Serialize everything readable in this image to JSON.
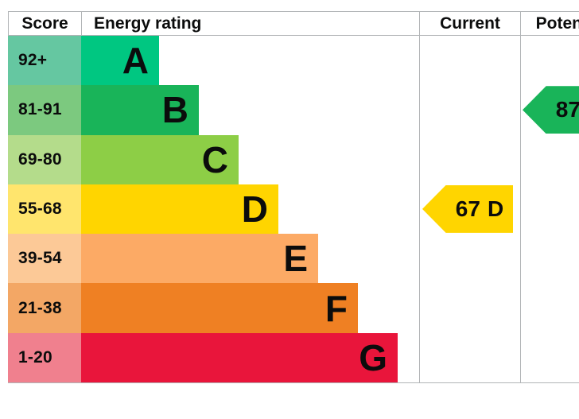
{
  "header": {
    "score": "Score",
    "rating": "Energy rating",
    "current": "Current",
    "potential": "Potential"
  },
  "bands": [
    {
      "range": "92+",
      "letter": "A",
      "bar_color": "#00c781",
      "score_color": "#65c7a1"
    },
    {
      "range": "81-91",
      "letter": "B",
      "bar_color": "#19b459",
      "score_color": "#7cc97f"
    },
    {
      "range": "69-80",
      "letter": "C",
      "bar_color": "#8dce46",
      "score_color": "#b4dc8b"
    },
    {
      "range": "55-68",
      "letter": "D",
      "bar_color": "#ffd500",
      "score_color": "#ffe56d"
    },
    {
      "range": "39-54",
      "letter": "E",
      "bar_color": "#fcaa65",
      "score_color": "#fcc997"
    },
    {
      "range": "21-38",
      "letter": "F",
      "bar_color": "#ef8023",
      "score_color": "#f3a765"
    },
    {
      "range": "1-20",
      "letter": "G",
      "bar_color": "#e9153b",
      "score_color": "#f0808e"
    }
  ],
  "current": {
    "score": "67",
    "band": "D",
    "color": "#ffd500"
  },
  "potential": {
    "score": "87",
    "band": "B",
    "color": "#19b459"
  },
  "border_color": "#b1b4b6",
  "chart_data": {
    "type": "bar",
    "title": "",
    "columns": [
      "Score",
      "Energy rating",
      "Current",
      "Potential"
    ],
    "categories": [
      "A",
      "B",
      "C",
      "D",
      "E",
      "F",
      "G"
    ],
    "score_ranges": [
      "92+",
      "81-91",
      "69-80",
      "55-68",
      "39-54",
      "21-38",
      "1-20"
    ],
    "band_colors": [
      "#00c781",
      "#19b459",
      "#8dce46",
      "#ffd500",
      "#fcaa65",
      "#ef8023",
      "#e9153b"
    ],
    "bar_relative_lengths": [
      1,
      2,
      3,
      4,
      5,
      6,
      7
    ],
    "current": {
      "score": 67,
      "band": "D"
    },
    "potential": {
      "score": 87,
      "band": "B"
    },
    "legend_position": "none",
    "grid": false
  }
}
